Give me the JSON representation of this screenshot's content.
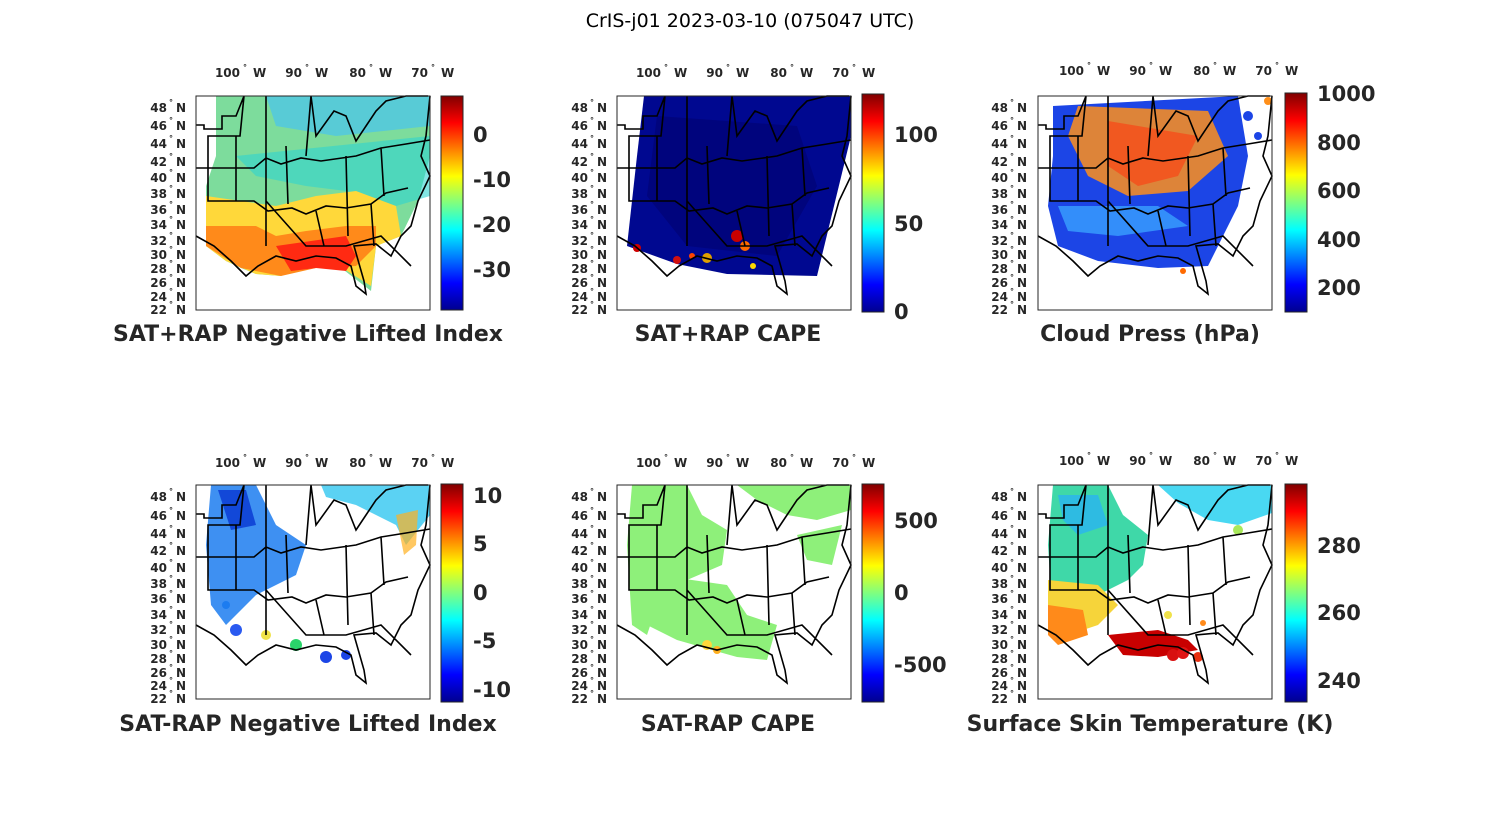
{
  "figure": {
    "title": "CrIS-j01 2023-03-10 (075047 UTC)"
  },
  "axes_labels": {
    "lon_ticks": [
      {
        "num": "100",
        "hemi": "W"
      },
      {
        "num": "90",
        "hemi": "W"
      },
      {
        "num": "80",
        "hemi": "W"
      },
      {
        "num": "70",
        "hemi": "W"
      }
    ],
    "lat_ticks": [
      {
        "num": "48",
        "hemi": "N"
      },
      {
        "num": "46",
        "hemi": "N"
      },
      {
        "num": "44",
        "hemi": "N"
      },
      {
        "num": "42",
        "hemi": "N"
      },
      {
        "num": "40",
        "hemi": "N"
      },
      {
        "num": "38",
        "hemi": "N"
      },
      {
        "num": "36",
        "hemi": "N"
      },
      {
        "num": "34",
        "hemi": "N"
      },
      {
        "num": "32",
        "hemi": "N"
      },
      {
        "num": "30",
        "hemi": "N"
      },
      {
        "num": "28",
        "hemi": "N"
      },
      {
        "num": "26",
        "hemi": "N"
      },
      {
        "num": "24",
        "hemi": "N"
      },
      {
        "num": "22",
        "hemi": "N"
      }
    ],
    "degree_symbol": "°"
  },
  "panels": [
    {
      "id": "sat-rap-neg-lifted-index",
      "title": "SAT+RAP Negative Lifted Index",
      "colorbar": {
        "min": -39,
        "max": 9,
        "ticks": [
          "0",
          "-10",
          "-20",
          "-30"
        ],
        "tick_values": [
          0,
          -10,
          -20,
          -30
        ]
      }
    },
    {
      "id": "sat-rap-cape",
      "title": "SAT+RAP CAPE",
      "colorbar": {
        "min": 0,
        "max": 122,
        "ticks": [
          "100",
          "50",
          "0"
        ],
        "tick_values": [
          100,
          50,
          0
        ]
      }
    },
    {
      "id": "cloud-press",
      "title": "Cloud Press (hPa)",
      "colorbar": {
        "min": 100,
        "max": 1000,
        "ticks": [
          "1000",
          "800",
          "600",
          "400",
          "200"
        ],
        "tick_values": [
          1000,
          800,
          600,
          400,
          200
        ]
      }
    },
    {
      "id": "sat-minus-rap-neg-lifted-index",
      "title": "SAT-RAP Negative Lifted Index",
      "colorbar": {
        "min": -12,
        "max": 12,
        "ticks": [
          "10",
          "5",
          "0",
          "-5",
          "-10"
        ],
        "tick_values": [
          10,
          5,
          0,
          -5,
          -10
        ]
      }
    },
    {
      "id": "sat-minus-rap-cape",
      "title": "SAT-RAP CAPE",
      "colorbar": {
        "min": -800,
        "max": 800,
        "ticks": [
          "500",
          "0",
          "-500"
        ],
        "tick_values": [
          500,
          0,
          -500
        ]
      }
    },
    {
      "id": "surface-skin-temperature",
      "title": "Surface Skin Temperature (K)",
      "colorbar": {
        "min": 233,
        "max": 298,
        "ticks": [
          "280",
          "260",
          "240"
        ],
        "tick_values": [
          280,
          260,
          240
        ]
      }
    }
  ],
  "colors": {
    "map_lines": "#000000",
    "frame": "#262626",
    "colormap": "jet"
  }
}
